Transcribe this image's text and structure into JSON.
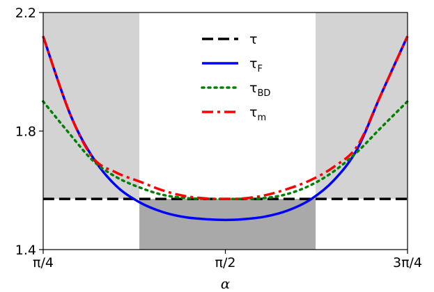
{
  "chart_data": {
    "type": "line",
    "xlabel": "α",
    "ylabel": "",
    "xlim": [
      0.7854,
      2.3562
    ],
    "ylim": [
      1.4,
      2.2
    ],
    "x_ticks": [
      {
        "value": 0.7854,
        "label": "π/4"
      },
      {
        "value": 1.5708,
        "label": "π/2"
      },
      {
        "value": 2.3562,
        "label": "3π/4"
      }
    ],
    "y_ticks": [
      {
        "value": 1.4,
        "label": "1.4"
      },
      {
        "value": 1.8,
        "label": "1.8"
      },
      {
        "value": 2.2,
        "label": "2.2"
      }
    ],
    "x": [
      0.785,
      0.9,
      1.0,
      1.1,
      1.2,
      1.3,
      1.4,
      1.5,
      1.5708,
      1.64,
      1.74,
      1.84,
      1.94,
      2.04,
      2.14,
      2.24,
      2.356
    ],
    "series": [
      {
        "name": "τ",
        "color": "#000000",
        "style": "dashed",
        "values": [
          1.571,
          1.571,
          1.571,
          1.571,
          1.571,
          1.571,
          1.571,
          1.571,
          1.571,
          1.571,
          1.571,
          1.571,
          1.571,
          1.571,
          1.571,
          1.571,
          1.571
        ]
      },
      {
        "name": "τF",
        "label_main": "τ",
        "label_sub": "F",
        "color": "#0000ff",
        "style": "solid",
        "values": [
          2.12,
          1.86,
          1.71,
          1.615,
          1.56,
          1.527,
          1.509,
          1.502,
          1.5,
          1.502,
          1.511,
          1.532,
          1.57,
          1.635,
          1.74,
          1.92,
          2.12
        ]
      },
      {
        "name": "τBD",
        "label_main": "τ",
        "label_sub": "BD",
        "color": "#008000",
        "style": "dotted",
        "values": [
          1.9,
          1.79,
          1.7,
          1.645,
          1.61,
          1.585,
          1.574,
          1.571,
          1.571,
          1.571,
          1.574,
          1.588,
          1.618,
          1.665,
          1.73,
          1.81,
          1.9
        ]
      },
      {
        "name": "τm",
        "label_main": "τ",
        "label_sub": "m",
        "color": "#ff0000",
        "style": "dashdot",
        "values": [
          2.12,
          1.86,
          1.71,
          1.66,
          1.63,
          1.6,
          1.58,
          1.572,
          1.571,
          1.572,
          1.583,
          1.605,
          1.635,
          1.68,
          1.75,
          1.92,
          2.12
        ]
      }
    ],
    "shaded_regions": [
      {
        "x": [
          0.7854,
          1.2
        ],
        "y": [
          1.571,
          2.2
        ],
        "color": "#d3d3d3"
      },
      {
        "x": [
          1.96,
          2.3562
        ],
        "y": [
          1.571,
          2.2
        ],
        "color": "#d3d3d3"
      },
      {
        "x": [
          1.2,
          1.96
        ],
        "y": [
          1.4,
          1.571
        ],
        "color": "#a9a9a9"
      }
    ],
    "legend_position": "top-center",
    "grid": false
  }
}
